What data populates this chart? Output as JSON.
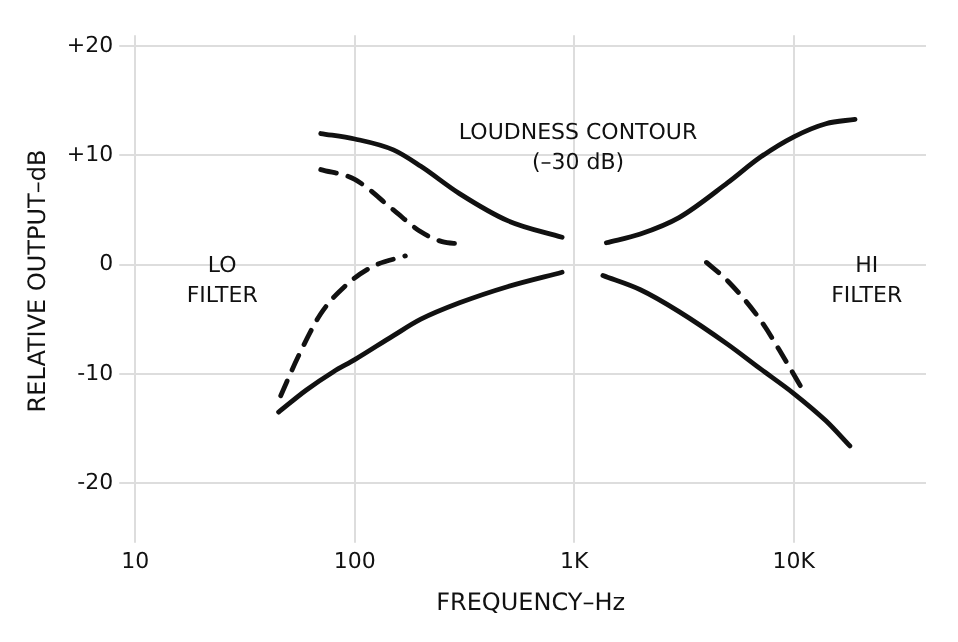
{
  "chart_data": {
    "type": "line",
    "xlabel": "FREQUENCY–Hz",
    "ylabel": "RELATIVE OUTPUT–dB",
    "log": "x",
    "grid": true,
    "legend": false,
    "marker": "none",
    "xlim": [
      10,
      40000
    ],
    "xticks": [
      10,
      100,
      {
        "value": 1000,
        "label": "1K"
      },
      {
        "value": 10000,
        "label": "10K"
      }
    ],
    "ylim": [
      -24,
      21
    ],
    "yticks": [
      {
        "value": 20,
        "label": "+20"
      },
      {
        "value": 10,
        "label": "+10"
      },
      0,
      -10,
      -20
    ],
    "series": [
      {
        "color": "#111111",
        "line_style": "solid",
        "x": [
          70,
          100,
          150,
          200,
          300,
          500,
          880
        ],
        "values": [
          12,
          11.5,
          10.5,
          9,
          6.5,
          4,
          2.5
        ]
      },
      {
        "color": "#111111",
        "line_style": "solid",
        "x": [
          1400,
          2000,
          3000,
          5000,
          7000,
          10000,
          14000,
          19000
        ],
        "values": [
          2,
          2.8,
          4.3,
          7.5,
          9.8,
          11.7,
          12.9,
          13.3
        ]
      },
      {
        "color": "#111111",
        "line_style": "solid",
        "x": [
          45,
          60,
          80,
          100,
          150,
          200,
          300,
          500,
          880
        ],
        "values": [
          -13.5,
          -11.5,
          -9.8,
          -8.7,
          -6.5,
          -5,
          -3.5,
          -2,
          -0.7
        ]
      },
      {
        "color": "#111111",
        "line_style": "solid",
        "x": [
          1350,
          2000,
          3000,
          5000,
          7000,
          10000,
          14000,
          18000
        ],
        "values": [
          -1,
          -2.3,
          -4.3,
          -7.3,
          -9.5,
          -11.8,
          -14.3,
          -16.6
        ]
      },
      {
        "color": "#111111",
        "line_style": "dashed",
        "x": [
          70,
          100,
          150,
          200,
          250,
          300
        ],
        "values": [
          8.7,
          7.8,
          5,
          3,
          2.1,
          1.9
        ]
      },
      {
        "color": "#111111",
        "line_style": "dashed",
        "x": [
          46,
          55,
          70,
          90,
          120,
          170
        ],
        "values": [
          -12,
          -8.5,
          -4.5,
          -2,
          -0.2,
          0.8
        ]
      },
      {
        "color": "#111111",
        "line_style": "dashed",
        "x": [
          4000,
          5000,
          7000,
          9000,
          11000
        ],
        "values": [
          0.2,
          -1.5,
          -5,
          -8.5,
          -11.5
        ]
      }
    ],
    "annotations": [
      "LOUDNESS CONTOUR",
      "(–30 dB)",
      "LO\nFILTER",
      "HI\nFILTER"
    ]
  }
}
